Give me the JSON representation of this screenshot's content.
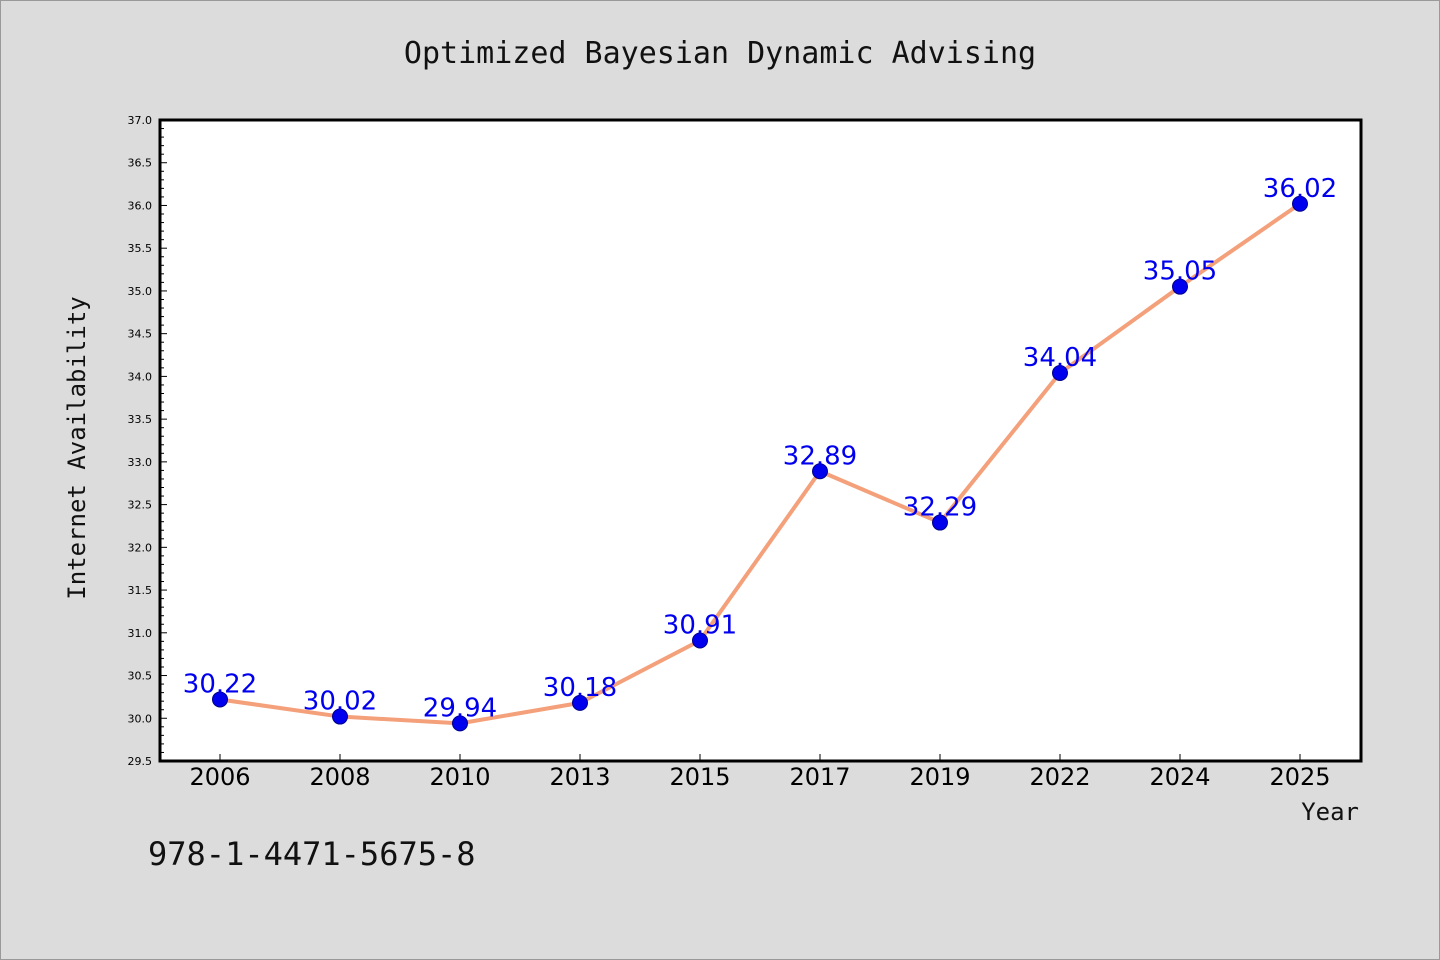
{
  "chart_data": {
    "type": "line",
    "title": "Optimized Bayesian Dynamic Advising",
    "xlabel": "Year",
    "ylabel": "Internet Availability",
    "categories": [
      "2006",
      "2008",
      "2010",
      "2013",
      "2015",
      "2017",
      "2019",
      "2022",
      "2024",
      "2025"
    ],
    "series": [
      {
        "values": [
          30.22,
          30.02,
          29.94,
          30.18,
          30.91,
          32.89,
          32.29,
          34.04,
          35.05,
          36.02
        ],
        "data_labels": [
          "30.22",
          "30.02",
          "29.94",
          "30.18",
          "30.91",
          "32.89",
          "32.29",
          "34.04",
          "35.05",
          "36.02"
        ]
      }
    ],
    "ylim": [
      29.5,
      37.0
    ],
    "yticks": [
      "29.5",
      "30.0",
      "30.5",
      "31.0",
      "31.5",
      "32.0",
      "32.5",
      "33.0",
      "33.5",
      "34.0",
      "34.5",
      "35.0",
      "35.5",
      "36.0",
      "36.5",
      "37.0"
    ],
    "grid": false,
    "line_color": "#f4a07a",
    "marker_color": "#0000ee",
    "label_color": "#0000ee",
    "background_color": "#dcdcdc",
    "plot_background_color": "#ffffff"
  },
  "footnote": "978-1-4471-5675-8"
}
